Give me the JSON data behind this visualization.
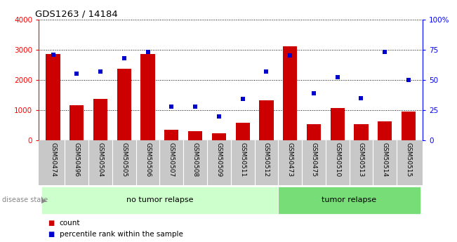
{
  "title": "GDS1263 / 14184",
  "samples": [
    "GSM50474",
    "GSM50496",
    "GSM50504",
    "GSM50505",
    "GSM50506",
    "GSM50507",
    "GSM50508",
    "GSM50509",
    "GSM50511",
    "GSM50512",
    "GSM50473",
    "GSM50475",
    "GSM50510",
    "GSM50513",
    "GSM50514",
    "GSM50515"
  ],
  "counts": [
    2850,
    1170,
    1360,
    2360,
    2860,
    340,
    310,
    230,
    590,
    1330,
    3100,
    530,
    1080,
    530,
    640,
    950
  ],
  "percentiles": [
    71,
    55,
    57,
    68,
    73,
    28,
    28,
    20,
    34,
    57,
    70,
    39,
    52,
    35,
    73,
    50
  ],
  "group_labels": [
    "no tumor relapse",
    "tumor relapse"
  ],
  "group_sizes": [
    10,
    6
  ],
  "group_colors": [
    "#ccffcc",
    "#77dd77"
  ],
  "bar_color": "#cc0000",
  "dot_color": "#0000cc",
  "ylim_left": [
    0,
    4000
  ],
  "ylim_right": [
    0,
    100
  ],
  "yticks_left": [
    0,
    1000,
    2000,
    3000,
    4000
  ],
  "yticks_right": [
    0,
    25,
    50,
    75,
    100
  ],
  "yticklabels_right": [
    "0",
    "25",
    "50",
    "75",
    "100%"
  ],
  "legend_label_bar": "count",
  "legend_label_dot": "percentile rank within the sample",
  "disease_state_label": "disease state",
  "bg_color": "#ffffff",
  "plot_bg_color": "#ffffff",
  "tick_bg_color": "#c8c8c8"
}
